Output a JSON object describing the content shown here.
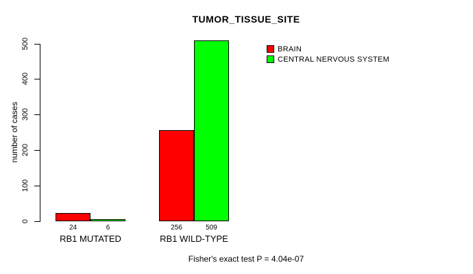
{
  "page": {
    "background": "#FFFFFF",
    "text_color": "#000000",
    "axis_color": "#000000"
  },
  "chart_data": {
    "type": "bar",
    "title": "TUMOR_TISSUE_SITE",
    "xlabel": "",
    "ylabel": "number of cases",
    "caption": "Fisher's exact test P = 4.04e-07",
    "categories": [
      "RB1 MUTATED",
      "RB1 WILD-TYPE"
    ],
    "series": [
      {
        "name": "BRAIN",
        "color": "#FF0000",
        "values": [
          24,
          256
        ]
      },
      {
        "name": "CENTRAL NERVOUS SYSTEM",
        "color": "#00FF00",
        "values": [
          6,
          509
        ]
      }
    ],
    "bar_value_labels": [
      [
        "24",
        "256"
      ],
      [
        "6",
        "509"
      ]
    ],
    "ylim": [
      0,
      500
    ],
    "yticks": [
      0,
      100,
      200,
      300,
      400,
      500
    ],
    "grid": false,
    "legend_position": "top-right-inside",
    "bar_border_color": "#000000"
  }
}
